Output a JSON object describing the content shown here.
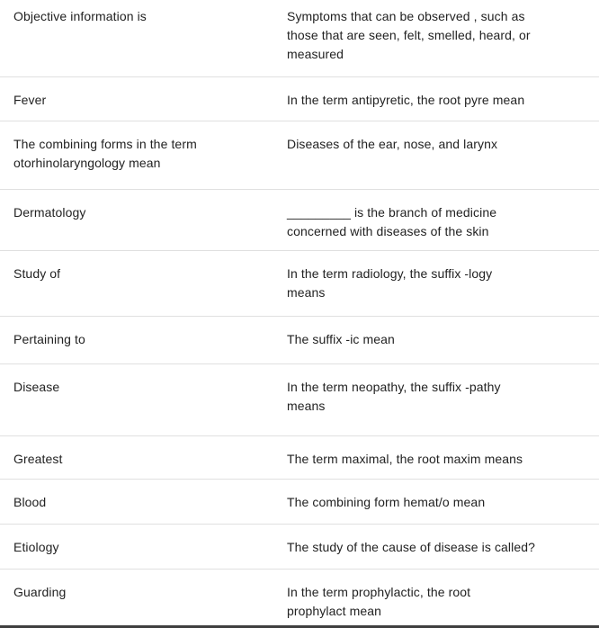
{
  "colors": {
    "background": "#ffffff",
    "text": "#222222",
    "divider": "#e0e0e0",
    "bottom_bar": "#3f3f3f"
  },
  "table": {
    "rows": [
      {
        "term": "Objective information is",
        "definition": "Symptoms that can be observed , such as\nthose that are seen, felt, smelled, heard, or\nmeasured"
      },
      {
        "term": "Fever",
        "definition": "In the term antipyretic, the root pyre mean"
      },
      {
        "term": "The combining forms in the term\notorhinolaryngology mean",
        "definition": "Diseases of the ear, nose, and larynx"
      },
      {
        "term": "Dermatology",
        "definition": "_________ is the branch of medicine\nconcerned with diseases of the skin"
      },
      {
        "term": "Study of",
        "definition": "In the term radiology, the suffix -logy\nmeans"
      },
      {
        "term": "Pertaining to",
        "definition": "The suffix -ic mean"
      },
      {
        "term": "Disease",
        "definition": "In the term neopathy, the suffix -pathy\nmeans"
      },
      {
        "term": "Greatest",
        "definition": "The term maximal, the root maxim means"
      },
      {
        "term": "Blood",
        "definition": "The combining form hemat/o mean"
      },
      {
        "term": "Etiology",
        "definition": "The study of the cause of disease is called?"
      },
      {
        "term": "Guarding",
        "definition": "In the term prophylactic, the root\nprophylact mean"
      }
    ]
  }
}
